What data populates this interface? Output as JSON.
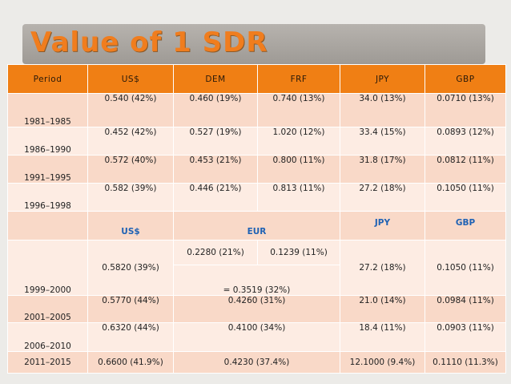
{
  "title": "Value of 1 SDR",
  "header": [
    "Period",
    "US$",
    "DEM",
    "FRF",
    "JPY",
    "GBP"
  ],
  "rows_early": [
    {
      "period": "1981–1985",
      "usd": "0.540 (42%)",
      "dem": "0.460 (19%)",
      "frf": "0.740 (13%)",
      "jpy": "34.0 (13%)",
      "gbp": "0.0710 (13%)"
    },
    {
      "period": "1986–1990",
      "usd": "0.452 (42%)",
      "dem": "0.527 (19%)",
      "frf": "1.020 (12%)",
      "jpy": "33.4 (15%)",
      "gbp": "0.0893 (12%)"
    },
    {
      "period": "1991–1995",
      "usd": "0.572 (40%)",
      "dem": "0.453 (21%)",
      "frf": "0.800 (11%)",
      "jpy": "31.8 (17%)",
      "gbp": "0.0812 (11%)"
    },
    {
      "period": "1996–1998",
      "usd": "0.582 (39%)",
      "dem": "0.446 (21%)",
      "frf": "0.813 (11%)",
      "jpy": "27.2 (18%)",
      "gbp": "0.1050 (11%)"
    }
  ],
  "subheader": {
    "usd": "US$",
    "eur": "EUR",
    "jpy": "JPY",
    "gbp": "GBP"
  },
  "row_1999": {
    "period": "1999–2000",
    "usd": "0.5820 (39%)",
    "eur_dem": "0.2280 (21%)",
    "eur_frf": "0.1239 (11%)",
    "eur_total": "= 0.3519 (32%)",
    "jpy": "27.2 (18%)",
    "gbp": "0.1050 (11%)"
  },
  "rows_late": [
    {
      "period": "2001–2005",
      "usd": "0.5770 (44%)",
      "eur": "0.4260 (31%)",
      "jpy": "21.0 (14%)",
      "gbp": "0.0984 (11%)"
    },
    {
      "period": "2006–2010",
      "usd": "0.6320 (44%)",
      "eur": "0.4100 (34%)",
      "jpy": "18.4 (11%)",
      "gbp": "0.0903 (11%)"
    },
    {
      "period": "2011–2015",
      "usd": "0.6600 (41.9%)",
      "eur": "0.4230 (37.4%)",
      "jpy": "12.1000 (9.4%)",
      "gbp": "0.1110 (11.3%)"
    }
  ]
}
